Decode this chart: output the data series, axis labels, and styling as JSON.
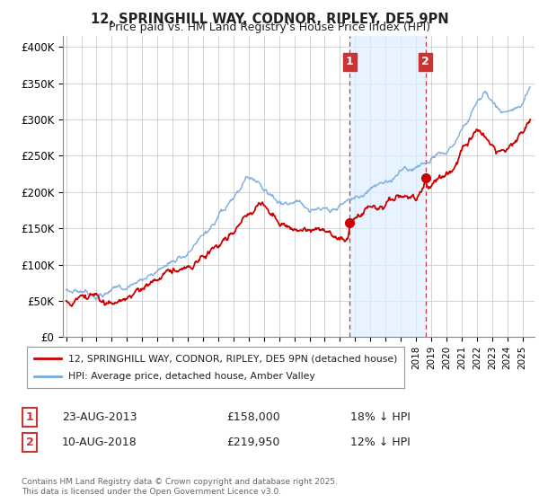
{
  "title": "12, SPRINGHILL WAY, CODNOR, RIPLEY, DE5 9PN",
  "subtitle": "Price paid vs. HM Land Registry's House Price Index (HPI)",
  "ylabel_ticks": [
    "£0",
    "£50K",
    "£100K",
    "£150K",
    "£200K",
    "£250K",
    "£300K",
    "£350K",
    "£400K"
  ],
  "ytick_values": [
    0,
    50000,
    100000,
    150000,
    200000,
    250000,
    300000,
    350000,
    400000
  ],
  "ylim": [
    0,
    415000
  ],
  "legend_label_red": "12, SPRINGHILL WAY, CODNOR, RIPLEY, DE5 9PN (detached house)",
  "legend_label_blue": "HPI: Average price, detached house, Amber Valley",
  "annotation1_label": "1",
  "annotation1_date": "23-AUG-2013",
  "annotation1_price": "£158,000",
  "annotation1_hpi": "18% ↓ HPI",
  "annotation2_label": "2",
  "annotation2_date": "10-AUG-2018",
  "annotation2_price": "£219,950",
  "annotation2_hpi": "12% ↓ HPI",
  "footnote": "Contains HM Land Registry data © Crown copyright and database right 2025.\nThis data is licensed under the Open Government Licence v3.0.",
  "red_color": "#cc0000",
  "blue_color": "#7aaadd",
  "annotation_box_color": "#cc3333",
  "shade_color": "#ddeeff",
  "vertical_line_color": "#cc3333",
  "background_color": "#ffffff",
  "grid_color": "#cccccc",
  "point1_x": 2013.65,
  "point1_y": 158000,
  "point2_x": 2018.62,
  "point2_y": 219950,
  "shade_x1": 2013.65,
  "shade_x2": 2018.62,
  "xmin": 1994.8,
  "xmax": 2025.8
}
